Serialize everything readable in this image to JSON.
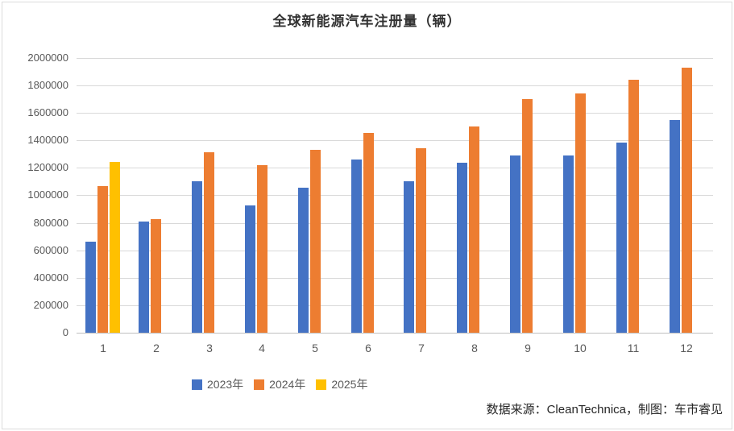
{
  "chart_data": {
    "type": "bar",
    "title": "全球新能源汽车注册量（辆）",
    "categories": [
      "1",
      "2",
      "3",
      "4",
      "5",
      "6",
      "7",
      "8",
      "9",
      "10",
      "11",
      "12"
    ],
    "series": [
      {
        "name": "2023年",
        "color": "#4472C4",
        "values": [
          665000,
          810000,
          1100000,
          925000,
          1055000,
          1260000,
          1100000,
          1240000,
          1290000,
          1290000,
          1385000,
          1550000
        ]
      },
      {
        "name": "2024年",
        "color": "#ED7D31",
        "values": [
          1070000,
          825000,
          1315000,
          1220000,
          1330000,
          1455000,
          1345000,
          1500000,
          1700000,
          1740000,
          1840000,
          1930000
        ]
      },
      {
        "name": "2025年",
        "color": "#FFC000",
        "values": [
          1245000,
          null,
          null,
          null,
          null,
          null,
          null,
          null,
          null,
          null,
          null,
          null
        ]
      }
    ],
    "xlabel": "",
    "ylabel": "",
    "ylim": [
      0,
      2000000
    ],
    "ytick_interval": 200000,
    "grid": true,
    "legend_position": "bottom",
    "source_note": "数据来源：CleanTechnica，制图：车市睿见"
  },
  "style": {
    "grid_color": "#d9d9d9",
    "baseline_color": "#bfbfbf",
    "axis_text_color": "#595959",
    "title_color": "#333333",
    "footer_color": "#262626",
    "background": "#ffffff",
    "frame_border_color": "#dcdcdc"
  }
}
